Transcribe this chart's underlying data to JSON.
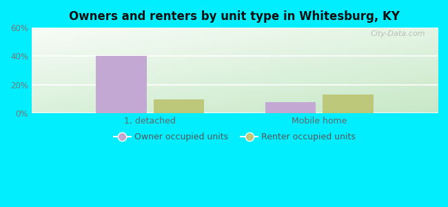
{
  "title": "Owners and renters by unit type in Whitesburg, KY",
  "categories": [
    "1, detached",
    "Mobile home"
  ],
  "owner_values": [
    40,
    8
  ],
  "renter_values": [
    10,
    13
  ],
  "owner_color": "#c4a8d4",
  "renter_color": "#bec87a",
  "ylim": [
    0,
    60
  ],
  "yticks": [
    0,
    20,
    40,
    60
  ],
  "yticklabels": [
    "0%",
    "20%",
    "40%",
    "60%"
  ],
  "outer_bg": "#00eeff",
  "bar_width": 0.3,
  "legend_owner": "Owner occupied units",
  "legend_renter": "Renter occupied units",
  "watermark": "City-Data.com",
  "bg_left_color": "#c8e8c8",
  "bg_right_color": "#e8f8f0",
  "bg_top_color": "#f0faf8",
  "bg_bottom_color": "#d0ecd0"
}
